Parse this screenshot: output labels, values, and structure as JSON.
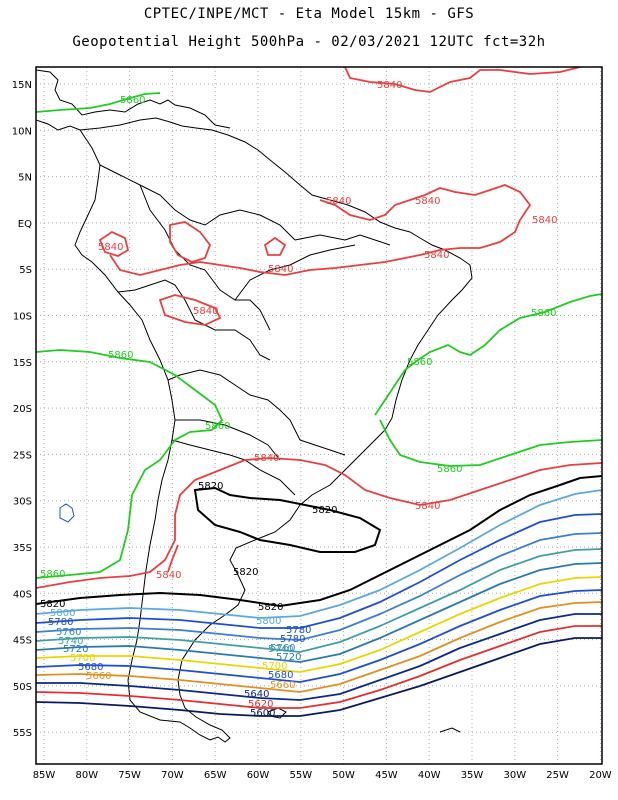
{
  "title": {
    "line1": "CPTEC/INPE/MCT -  Eta Model 15km - GFS",
    "line2": "Geopotential Height 500hPa - 02/03/2021 12UTC fct=32h"
  },
  "axes": {
    "lat_labels": [
      "15N",
      "10N",
      "5N",
      "EQ",
      "5S",
      "10S",
      "15S",
      "20S",
      "25S",
      "30S",
      "35S",
      "40S",
      "45S",
      "50S",
      "55S"
    ],
    "lon_labels": [
      "85W",
      "80W",
      "75W",
      "70W",
      "65W",
      "60W",
      "55W",
      "50W",
      "45W",
      "40W",
      "35W",
      "30W",
      "25W",
      "20W"
    ]
  },
  "colors": {
    "c5860": "#22cc22",
    "c5840": "#e84040",
    "c5820": "#000000",
    "c5800": "#5aa8e0",
    "c5780": "#1f4fd0",
    "c5760": "#3a7fd0",
    "c5740": "#40a0a0",
    "c5720": "#2a7ab0",
    "c5700": "#e6d800",
    "c5680": "#e09020",
    "c5660": "#e07020",
    "c5640": "#0a2a8a",
    "c5620": "#e03030",
    "c5600": "#0a1a60",
    "coast": "#000000",
    "grid": "#999999"
  },
  "contour_labels": {
    "l5860a": "5860",
    "l5860b": "5860",
    "l5860c": "5860",
    "l5860d": "5860",
    "l5860e": "5860",
    "l5860f": "5860",
    "l5860g": "5860",
    "l5840a": "5840",
    "l5840b": "5840",
    "l5840c": "5840",
    "l5840d": "5840",
    "l5840e": "5840",
    "l5840f": "5840",
    "l5840g": "5840",
    "l5840h": "5840",
    "l5840i": "5840",
    "l5840j": "5840",
    "l5820a": "5820",
    "l5820b": "5820",
    "l5820c": "5820",
    "l5820d": "5820",
    "l5820e": "5820",
    "l5800a": "5800",
    "l5800b": "5800",
    "l5780a": "5780",
    "l5780b": "5780",
    "l5780c": "5780",
    "l5760a": "5760",
    "l5760b": "5760",
    "l5740a": "5740",
    "l5740b": "5740",
    "l5720a": "5720",
    "l5720b": "5720",
    "l5700a": "5700",
    "l5700b": "5700",
    "l5680a": "5680",
    "l5680b": "5680",
    "l5660a": "5660",
    "l5660b": "5660",
    "l5640": "5640",
    "l5620": "5620",
    "l5600": "5600"
  }
}
